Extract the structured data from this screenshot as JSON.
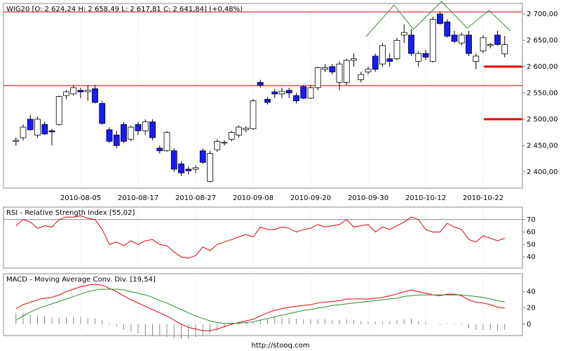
{
  "footer": "http://stooq.com",
  "chart_data": [
    {
      "type": "candlestick",
      "title": "WIG20 [O: 2 624,24 H: 2 658,49 L: 2 617,81 C: 2 641,84] (+0,48%)",
      "categories": [
        null,
        null,
        null,
        null,
        null,
        null,
        null,
        null,
        null,
        "2010-08-05",
        null,
        null,
        null,
        null,
        null,
        null,
        null,
        "2010-08-17",
        null,
        null,
        null,
        null,
        null,
        null,
        null,
        "2010-08-27",
        null,
        null,
        null,
        null,
        null,
        null,
        null,
        "2010-09-08",
        null,
        null,
        null,
        null,
        null,
        null,
        null,
        "2010-09-20",
        null,
        null,
        null,
        null,
        null,
        null,
        null,
        "2010-09-30",
        null,
        null,
        null,
        null,
        null,
        null,
        null,
        "2010-10-12",
        null,
        null,
        null,
        null,
        null,
        null,
        null,
        "2010-10-22",
        null,
        null,
        null
      ],
      "open": [
        2458,
        2465,
        2500,
        2470,
        2490,
        2478,
        2490,
        2545,
        2548,
        2555,
        2552,
        2558,
        2530,
        2480,
        2470,
        2490,
        2462,
        2490,
        2478,
        2495,
        2445,
        2440,
        2440,
        2415,
        2405,
        2405,
        2440,
        2382,
        2442,
        2455,
        2462,
        2470,
        2480,
        2482,
        2570,
        2538,
        2552,
        2548,
        2555,
        2545,
        2562,
        2540,
        2560,
        2595,
        2600,
        2570,
        2570,
        2612,
        2575,
        2590,
        2620,
        2605,
        2615,
        2615,
        2660,
        2660,
        2610,
        2625,
        2610,
        2700,
        2685,
        2660,
        2645,
        2660,
        2610,
        2630,
        2640,
        2660,
        2624.24
      ],
      "high": [
        2465,
        2490,
        2508,
        2505,
        2495,
        2482,
        2545,
        2556,
        2565,
        2560,
        2565,
        2565,
        2535,
        2485,
        2478,
        2495,
        2488,
        2495,
        2500,
        2500,
        2450,
        2478,
        2445,
        2420,
        2410,
        2412,
        2445,
        2440,
        2462,
        2460,
        2478,
        2488,
        2486,
        2538,
        2575,
        2542,
        2558,
        2560,
        2560,
        2550,
        2565,
        2565,
        2600,
        2605,
        2605,
        2610,
        2615,
        2625,
        2590,
        2600,
        2625,
        2645,
        2625,
        2655,
        2680,
        2672,
        2630,
        2632,
        2695,
        2705,
        2690,
        2668,
        2665,
        2668,
        2625,
        2660,
        2645,
        2668,
        2658.49
      ],
      "low": [
        2450,
        2460,
        2478,
        2465,
        2470,
        2450,
        2488,
        2538,
        2545,
        2540,
        2535,
        2530,
        2490,
        2455,
        2445,
        2455,
        2458,
        2470,
        2470,
        2460,
        2435,
        2438,
        2400,
        2392,
        2395,
        2398,
        2415,
        2380,
        2438,
        2450,
        2458,
        2465,
        2475,
        2480,
        2560,
        2528,
        2540,
        2540,
        2540,
        2530,
        2538,
        2538,
        2555,
        2590,
        2585,
        2555,
        2565,
        2600,
        2570,
        2585,
        2590,
        2600,
        2600,
        2612,
        2645,
        2620,
        2600,
        2612,
        2608,
        2680,
        2655,
        2645,
        2640,
        2620,
        2595,
        2625,
        2635,
        2640,
        2617.81
      ],
      "close": [
        2460,
        2485,
        2480,
        2500,
        2472,
        2476,
        2543,
        2552,
        2560,
        2552,
        2555,
        2532,
        2492,
        2458,
        2450,
        2458,
        2485,
        2478,
        2495,
        2465,
        2440,
        2475,
        2405,
        2398,
        2402,
        2408,
        2418,
        2435,
        2458,
        2456,
        2475,
        2485,
        2483,
        2535,
        2565,
        2532,
        2548,
        2553,
        2550,
        2535,
        2540,
        2560,
        2598,
        2598,
        2590,
        2605,
        2612,
        2615,
        2585,
        2595,
        2595,
        2640,
        2610,
        2650,
        2665,
        2625,
        2625,
        2618,
        2690,
        2682,
        2658,
        2648,
        2660,
        2625,
        2620,
        2655,
        2642,
        2642,
        2641.84
      ],
      "up_color": "#ffffff",
      "down_color": "#1a1aff",
      "edge_color": "#000000",
      "ylim": [
        2369,
        2720
      ],
      "yticks": [
        {
          "value": 2400,
          "label": "2 400,00"
        },
        {
          "value": 2450,
          "label": "2 450,00"
        },
        {
          "value": 2500,
          "label": "2 500,00"
        },
        {
          "value": 2550,
          "label": "2 550,00"
        },
        {
          "value": 2600,
          "label": "2 600,00"
        },
        {
          "value": 2650,
          "label": "2 650,00"
        },
        {
          "value": 2700,
          "label": "2 700,00"
        }
      ],
      "hlines": [
        2704,
        2564
      ],
      "hline_color": "#cc0000",
      "levels": [
        2600,
        2500
      ],
      "level_color": "#ee0000",
      "pattern": {
        "x": [
          48.7,
          52.6,
          55.3,
          59.2,
          62.8,
          65.8,
          68.8
        ],
        "values": [
          2657,
          2717,
          2671,
          2724,
          2673,
          2707,
          2668
        ],
        "color": "#3a8a3a"
      },
      "grid": true
    },
    {
      "type": "line",
      "title": "RSI - Relative Strength Index [55,02]",
      "values": [
        65,
        70,
        68,
        63,
        65,
        64,
        70,
        72,
        72,
        73,
        71,
        70,
        62,
        50,
        52,
        49,
        53,
        50,
        53,
        54,
        50,
        49,
        44,
        40,
        39,
        41,
        48,
        45,
        50,
        52,
        54,
        56,
        58,
        56,
        64,
        62,
        62,
        64,
        63,
        60,
        62,
        63,
        66,
        64,
        65,
        66,
        70,
        64,
        65,
        66,
        60,
        64,
        62,
        65,
        68,
        72,
        70,
        62,
        60,
        60,
        67,
        64,
        62,
        54,
        52,
        57,
        55,
        53,
        55.02
      ],
      "color": "#dd0000",
      "ylim": [
        31,
        80
      ],
      "yticks": [
        40,
        50,
        60,
        70
      ],
      "hlines": [
        70
      ],
      "hline_color": "#888888",
      "grid": true
    },
    {
      "type": "macd",
      "title": "MACD - Moving Average Conv. Div. [19,54]",
      "series": [
        {
          "color": "#dd0000",
          "values": [
            19,
            24,
            27,
            30,
            32,
            33,
            36,
            40,
            43,
            46,
            48,
            49,
            48,
            44,
            40,
            35,
            30,
            26,
            22,
            18,
            14,
            10,
            5,
            0,
            -4,
            -6,
            -8,
            -8,
            -6,
            -3,
            0,
            2,
            4,
            6,
            10,
            14,
            17,
            19,
            21,
            22,
            23,
            24,
            26,
            27,
            28,
            29,
            31,
            31,
            31,
            31,
            32,
            33,
            35,
            37,
            40,
            42,
            40,
            38,
            36,
            35,
            37,
            37,
            35,
            30,
            27,
            26,
            24,
            21,
            19.54
          ]
        },
        {
          "color": "#2a8a2a",
          "values": [
            5,
            10,
            15,
            19,
            22,
            25,
            28,
            31,
            34,
            37,
            40,
            42,
            43,
            43,
            43,
            42,
            40,
            38,
            36,
            33,
            29,
            26,
            22,
            18,
            14,
            10,
            7,
            4,
            2,
            1,
            1,
            1,
            2,
            3,
            5,
            7,
            9,
            11,
            13,
            15,
            17,
            18,
            20,
            21,
            23,
            24,
            25,
            26,
            27,
            28,
            29,
            30,
            31,
            32,
            34,
            35,
            36,
            36,
            36,
            36,
            36,
            36,
            36,
            35,
            34,
            33,
            31,
            29,
            27
          ]
        }
      ],
      "histogram": {
        "color": "#888888",
        "values": [
          14,
          14,
          12,
          11,
          10,
          8,
          8,
          9,
          9,
          9,
          8,
          7,
          5,
          1,
          -3,
          -7,
          -10,
          -12,
          -14,
          -15,
          -15,
          -16,
          -17,
          -18,
          -18,
          -16,
          -15,
          -12,
          -8,
          -4,
          -1,
          1,
          2,
          3,
          5,
          7,
          8,
          8,
          8,
          7,
          6,
          6,
          6,
          6,
          5,
          5,
          6,
          5,
          4,
          3,
          3,
          3,
          4,
          5,
          6,
          7,
          4,
          2,
          0,
          -1,
          1,
          1,
          -1,
          -5,
          -7,
          -7,
          -7,
          -8,
          -7
        ]
      },
      "ylim": [
        -14,
        62
      ],
      "yticks": [
        0,
        20,
        40
      ],
      "grid": true
    }
  ]
}
